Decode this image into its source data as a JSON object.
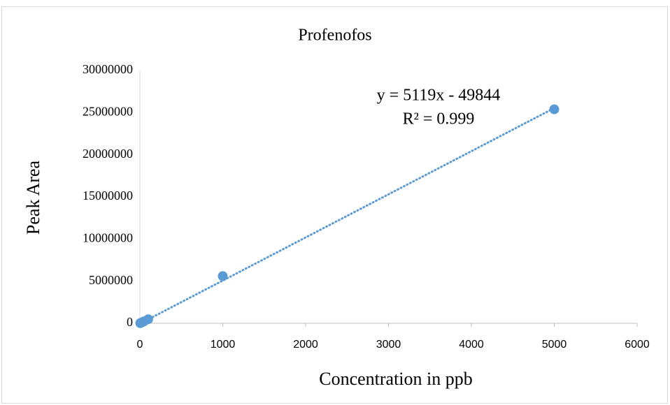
{
  "chart_data": {
    "type": "scatter",
    "title": "Profenofos",
    "x_label": "Concentration in ppb",
    "y_label": "Peak Area",
    "x": [
      5,
      10,
      25,
      50,
      100,
      1000,
      5000
    ],
    "series": [
      {
        "name": "Profenofos",
        "color": "#5b9bd5",
        "values": [
          20000,
          45000,
          110000,
          230000,
          480000,
          5600000,
          25400000
        ]
      }
    ],
    "trendline": {
      "equation": "y = 5119x - 49844",
      "r_squared": "R² = 0.999",
      "slope": 5119,
      "intercept": -49844
    },
    "xlim": [
      0,
      6000
    ],
    "xticks": [
      0,
      1000,
      2000,
      3000,
      4000,
      5000,
      6000
    ],
    "ylim": [
      0,
      30000000
    ],
    "yticks": [
      0,
      5000000,
      10000000,
      15000000,
      20000000,
      25000000,
      30000000
    ],
    "grid": false
  }
}
